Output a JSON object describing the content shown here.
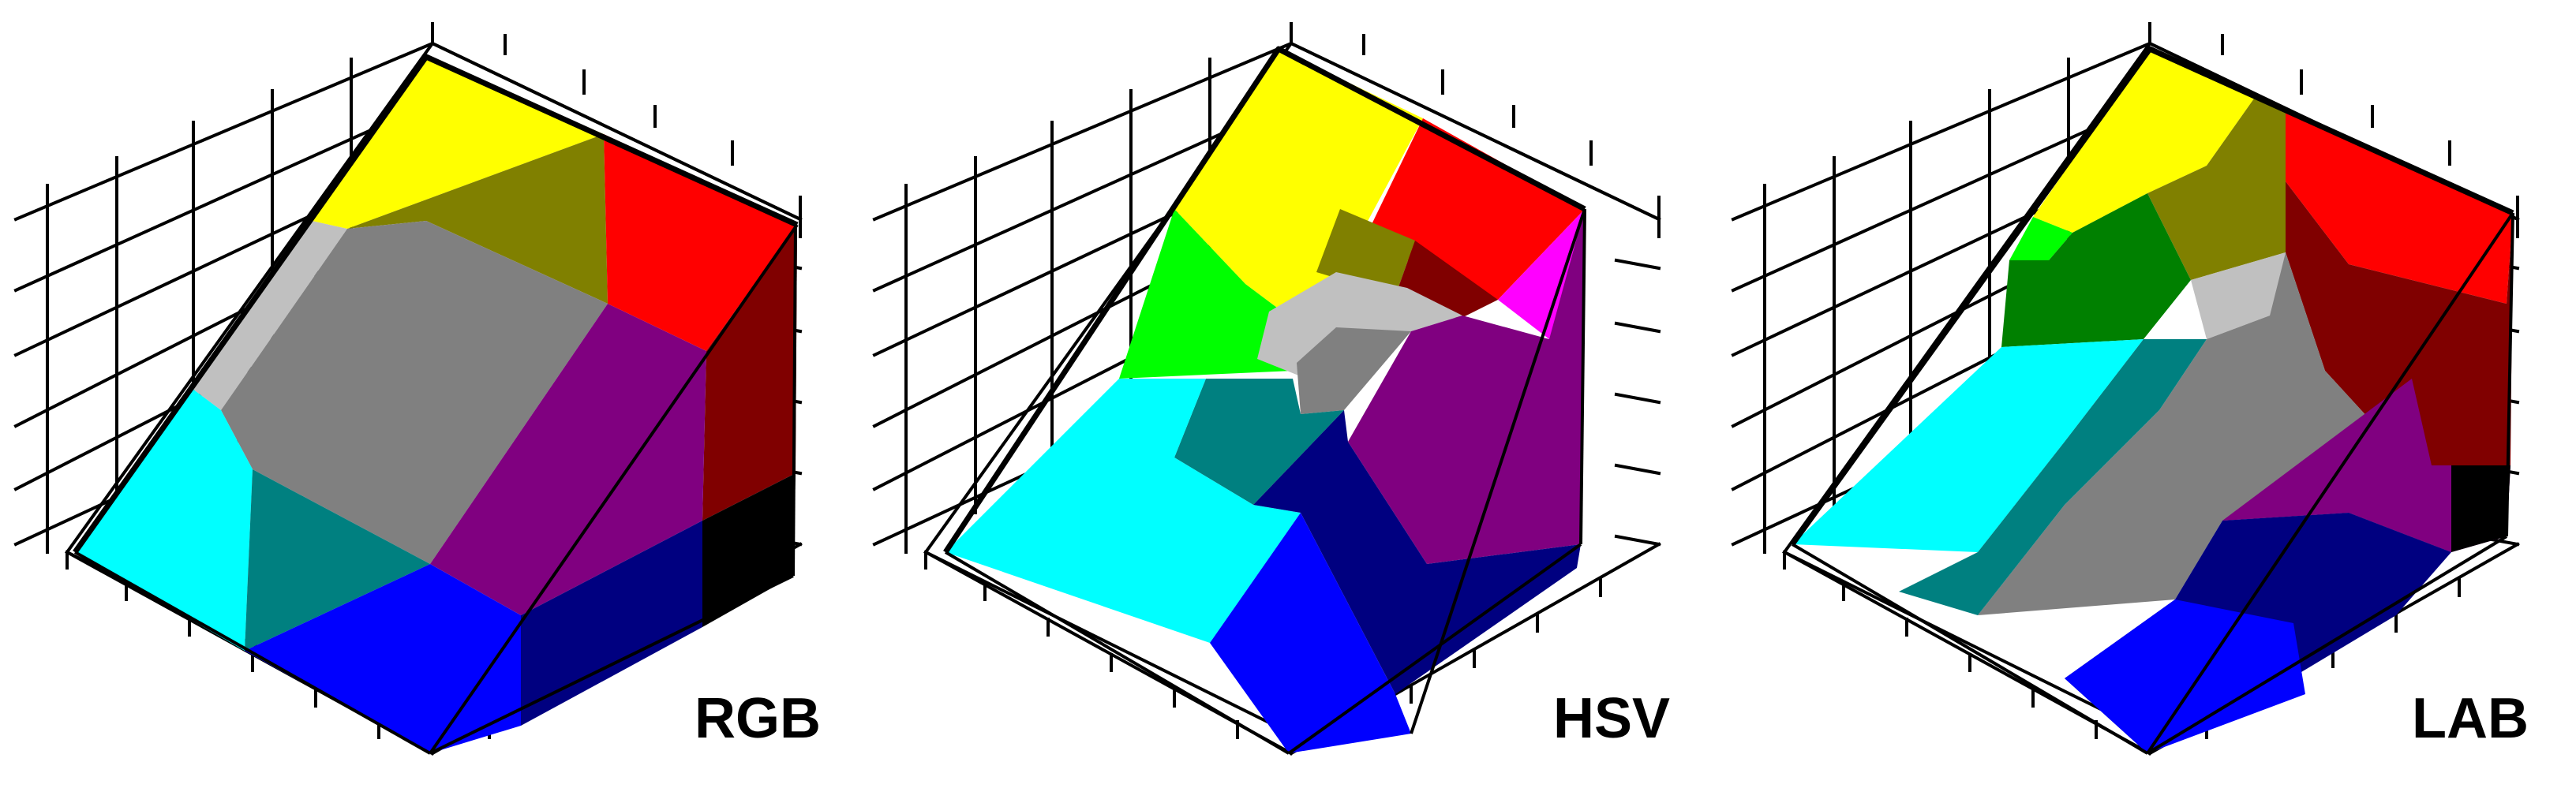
{
  "panels": [
    {
      "id": "rgb",
      "label": "RGB"
    },
    {
      "id": "hsv",
      "label": "HSV"
    },
    {
      "id": "lab",
      "label": "LAB"
    }
  ],
  "colors": {
    "yellow": "#ffff00",
    "olive": "#808000",
    "red": "#ff0000",
    "maroon": "#800000",
    "magenta": "#ff00ff",
    "purple": "#800080",
    "navy": "#000080",
    "blue": "#0000ff",
    "teal": "#008080",
    "cyan": "#00ffff",
    "green": "#008000",
    "lime": "#00ff00",
    "gray": "#808080",
    "silver": "#c0c0c0",
    "black": "#000000"
  }
}
